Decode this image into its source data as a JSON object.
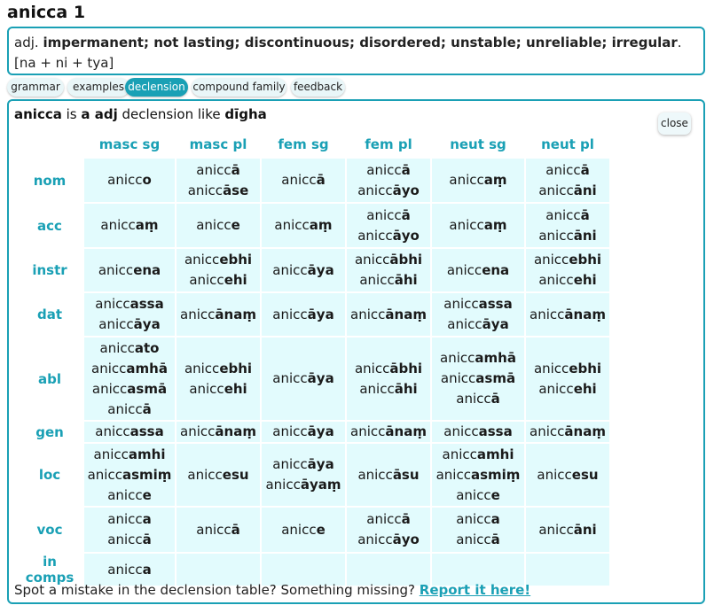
{
  "title": "anicca 1",
  "summary": {
    "pos": "adj.",
    "meaning": "impermanent; not lasting; discontinuous; disordered; unstable; unreliable; irregular",
    "construction": ". [na + ni + tya]"
  },
  "tabs": [
    "grammar",
    "examples",
    "declension",
    "compound family",
    "feedback"
  ],
  "active_tab": "declension",
  "heading": {
    "word": "anicca",
    "is": " is ",
    "type": "a adj",
    "like": " declension like ",
    "pattern": "dīgha"
  },
  "close_label": "close",
  "columns": [
    "masc sg",
    "masc pl",
    "fem sg",
    "fem pl",
    "neut sg",
    "neut pl"
  ],
  "rows": [
    {
      "case": "nom",
      "cells": [
        [
          [
            "anicc",
            "o"
          ]
        ],
        [
          [
            "anicc",
            "ā"
          ],
          [
            "anicc",
            "āse"
          ]
        ],
        [
          [
            "anicc",
            "ā"
          ]
        ],
        [
          [
            "anicc",
            "ā"
          ],
          [
            "anicc",
            "āyo"
          ]
        ],
        [
          [
            "anicc",
            "aṃ"
          ]
        ],
        [
          [
            "anicc",
            "ā"
          ],
          [
            "anicc",
            "āni"
          ]
        ]
      ]
    },
    {
      "case": "acc",
      "cells": [
        [
          [
            "anicc",
            "aṃ"
          ]
        ],
        [
          [
            "anicc",
            "e"
          ]
        ],
        [
          [
            "anicc",
            "aṃ"
          ]
        ],
        [
          [
            "anicc",
            "ā"
          ],
          [
            "anicc",
            "āyo"
          ]
        ],
        [
          [
            "anicc",
            "aṃ"
          ]
        ],
        [
          [
            "anicc",
            "ā"
          ],
          [
            "anicc",
            "āni"
          ]
        ]
      ]
    },
    {
      "case": "instr",
      "cells": [
        [
          [
            "anicc",
            "ena"
          ]
        ],
        [
          [
            "anicc",
            "ebhi"
          ],
          [
            "anicc",
            "ehi"
          ]
        ],
        [
          [
            "anicc",
            "āya"
          ]
        ],
        [
          [
            "anicc",
            "ābhi"
          ],
          [
            "anicc",
            "āhi"
          ]
        ],
        [
          [
            "anicc",
            "ena"
          ]
        ],
        [
          [
            "anicc",
            "ebhi"
          ],
          [
            "anicc",
            "ehi"
          ]
        ]
      ]
    },
    {
      "case": "dat",
      "cells": [
        [
          [
            "anicc",
            "assa"
          ],
          [
            "anicc",
            "āya"
          ]
        ],
        [
          [
            "anicc",
            "ānaṃ"
          ]
        ],
        [
          [
            "anicc",
            "āya"
          ]
        ],
        [
          [
            "anicc",
            "ānaṃ"
          ]
        ],
        [
          [
            "anicc",
            "assa"
          ],
          [
            "anicc",
            "āya"
          ]
        ],
        [
          [
            "anicc",
            "ānaṃ"
          ]
        ]
      ]
    },
    {
      "case": "abl",
      "cells": [
        [
          [
            "anicc",
            "ato"
          ],
          [
            "anicc",
            "amhā"
          ],
          [
            "anicc",
            "asmā"
          ],
          [
            "anicc",
            "ā"
          ]
        ],
        [
          [
            "anicc",
            "ebhi"
          ],
          [
            "anicc",
            "ehi"
          ]
        ],
        [
          [
            "anicc",
            "āya"
          ]
        ],
        [
          [
            "anicc",
            "ābhi"
          ],
          [
            "anicc",
            "āhi"
          ]
        ],
        [
          [
            "anicc",
            "amhā"
          ],
          [
            "anicc",
            "asmā"
          ],
          [
            "anicc",
            "ā"
          ]
        ],
        [
          [
            "anicc",
            "ebhi"
          ],
          [
            "anicc",
            "ehi"
          ]
        ]
      ]
    },
    {
      "case": "gen",
      "cells": [
        [
          [
            "anicc",
            "assa"
          ]
        ],
        [
          [
            "anicc",
            "ānaṃ"
          ]
        ],
        [
          [
            "anicc",
            "āya"
          ]
        ],
        [
          [
            "anicc",
            "ānaṃ"
          ]
        ],
        [
          [
            "anicc",
            "assa"
          ]
        ],
        [
          [
            "anicc",
            "ānaṃ"
          ]
        ]
      ]
    },
    {
      "case": "loc",
      "cells": [
        [
          [
            "anicc",
            "amhi"
          ],
          [
            "anicc",
            "asmiṃ"
          ],
          [
            "anicc",
            "e"
          ]
        ],
        [
          [
            "anicc",
            "esu"
          ]
        ],
        [
          [
            "anicc",
            "āya"
          ],
          [
            "anicc",
            "āyaṃ"
          ]
        ],
        [
          [
            "anicc",
            "āsu"
          ]
        ],
        [
          [
            "anicc",
            "amhi"
          ],
          [
            "anicc",
            "asmiṃ"
          ],
          [
            "anicc",
            "e"
          ]
        ],
        [
          [
            "anicc",
            "esu"
          ]
        ]
      ]
    },
    {
      "case": "voc",
      "cells": [
        [
          [
            "anicc",
            "a"
          ],
          [
            "anicc",
            "ā"
          ]
        ],
        [
          [
            "anicc",
            "ā"
          ]
        ],
        [
          [
            "anicc",
            "e"
          ]
        ],
        [
          [
            "anicc",
            "ā"
          ],
          [
            "anicc",
            "āyo"
          ]
        ],
        [
          [
            "anicc",
            "a"
          ],
          [
            "anicc",
            "ā"
          ]
        ],
        [
          [
            "anicc",
            "āni"
          ]
        ]
      ]
    },
    {
      "case": "in comps",
      "cells": [
        [
          [
            "anicc",
            "a"
          ]
        ],
        [],
        [],
        [],
        [],
        []
      ]
    }
  ],
  "footer": {
    "text": "Spot a mistake in the declension table? Something missing? ",
    "link": "Report it here!"
  },
  "colors": {
    "accent": "#1aa0b5",
    "cell_bg": "#e2fbfd"
  }
}
